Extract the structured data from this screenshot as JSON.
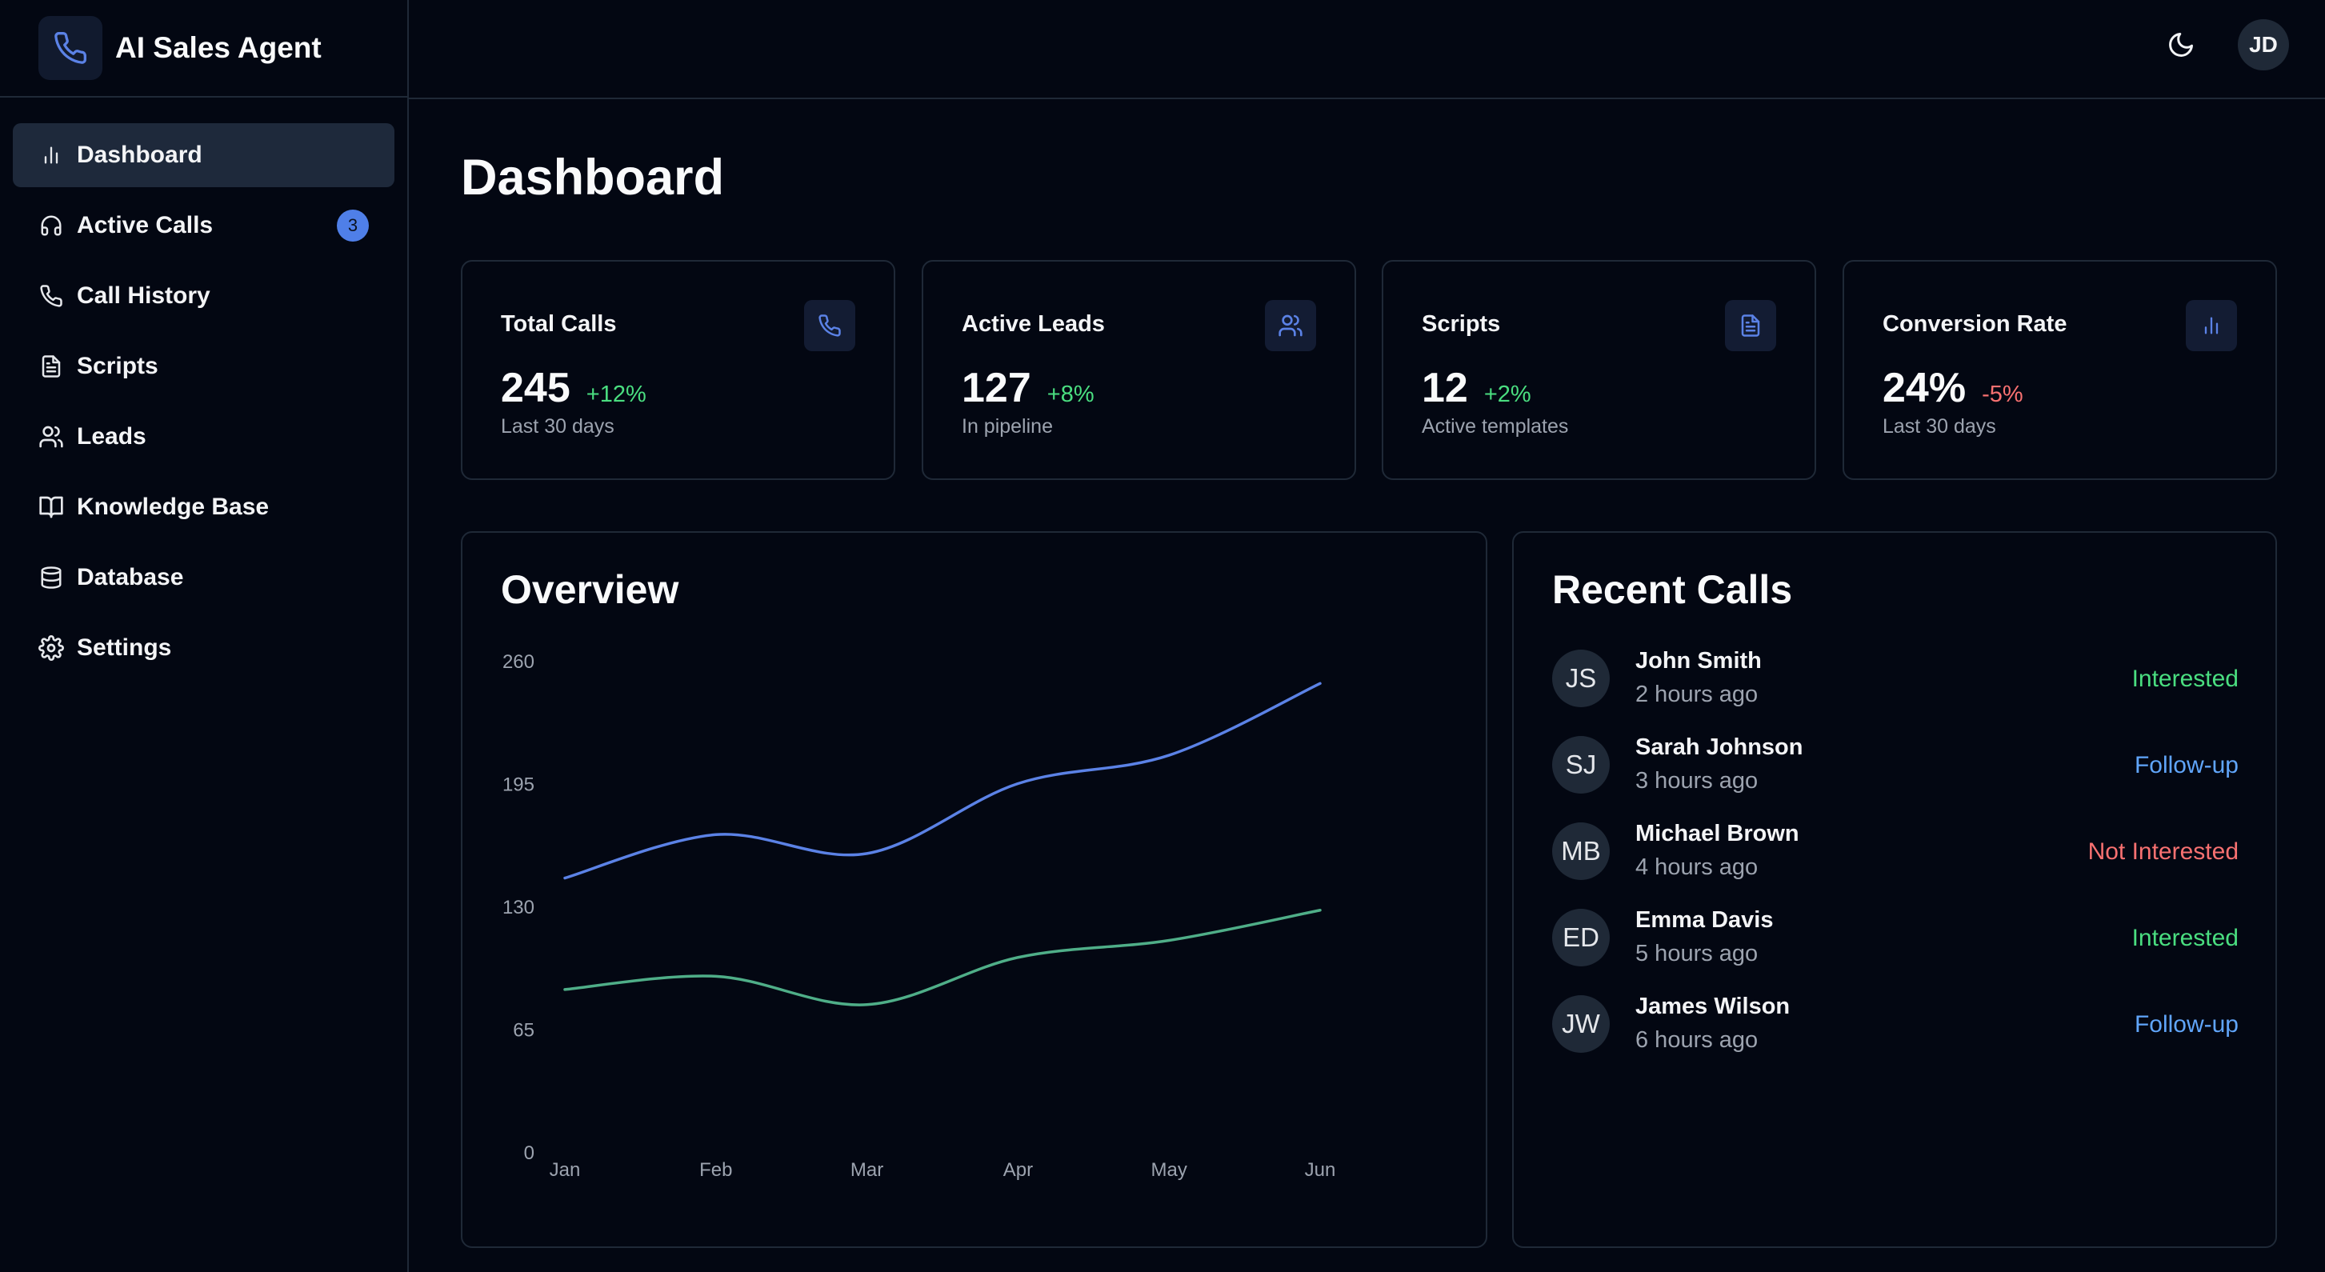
{
  "app": {
    "title": "AI Sales Agent",
    "logo_icon": "phone-icon"
  },
  "sidebar": {
    "items": [
      {
        "label": "Dashboard",
        "icon": "bar-chart-icon",
        "active": true
      },
      {
        "label": "Active Calls",
        "icon": "headphones-icon",
        "badge": "3"
      },
      {
        "label": "Call History",
        "icon": "phone-icon"
      },
      {
        "label": "Scripts",
        "icon": "file-text-icon"
      },
      {
        "label": "Leads",
        "icon": "users-icon"
      },
      {
        "label": "Knowledge Base",
        "icon": "book-open-icon"
      },
      {
        "label": "Database",
        "icon": "database-icon"
      },
      {
        "label": "Settings",
        "icon": "gear-icon"
      }
    ]
  },
  "header": {
    "theme_icon": "moon-icon",
    "user_initials": "JD"
  },
  "page": {
    "title": "Dashboard"
  },
  "stats": [
    {
      "label": "Total Calls",
      "value": "245",
      "change": "+12%",
      "trend": "up",
      "sub": "Last 30 days",
      "icon": "phone-icon"
    },
    {
      "label": "Active Leads",
      "value": "127",
      "change": "+8%",
      "trend": "up",
      "sub": "In pipeline",
      "icon": "users-icon"
    },
    {
      "label": "Scripts",
      "value": "12",
      "change": "+2%",
      "trend": "up",
      "sub": "Active templates",
      "icon": "file-text-icon"
    },
    {
      "label": "Conversion Rate",
      "value": "24%",
      "change": "-5%",
      "trend": "down",
      "sub": "Last 30 days",
      "icon": "bar-chart-icon"
    }
  ],
  "overview": {
    "title": "Overview",
    "chart_data": {
      "type": "line",
      "categories": [
        "Jan",
        "Feb",
        "Mar",
        "Apr",
        "May",
        "Jun"
      ],
      "yticks": [
        0,
        65,
        130,
        195,
        260
      ],
      "ylim": [
        0,
        260
      ],
      "series": [
        {
          "values": [
            145,
            168,
            158,
            195,
            210,
            248
          ],
          "color": "#5b82e6"
        },
        {
          "values": [
            86,
            93,
            78,
            103,
            112,
            128
          ],
          "color": "#4fae88"
        }
      ],
      "grid": false
    }
  },
  "recent_calls": {
    "title": "Recent Calls",
    "items": [
      {
        "initials": "JS",
        "name": "John Smith",
        "time": "2 hours ago",
        "status": "Interested",
        "status_color": "#4ade80"
      },
      {
        "initials": "SJ",
        "name": "Sarah Johnson",
        "time": "3 hours ago",
        "status": "Follow-up",
        "status_color": "#60a5fa"
      },
      {
        "initials": "MB",
        "name": "Michael Brown",
        "time": "4 hours ago",
        "status": "Not Interested",
        "status_color": "#f87171"
      },
      {
        "initials": "ED",
        "name": "Emma Davis",
        "time": "5 hours ago",
        "status": "Interested",
        "status_color": "#4ade80"
      },
      {
        "initials": "JW",
        "name": "James Wilson",
        "time": "6 hours ago",
        "status": "Follow-up",
        "status_color": "#60a5fa"
      }
    ]
  }
}
